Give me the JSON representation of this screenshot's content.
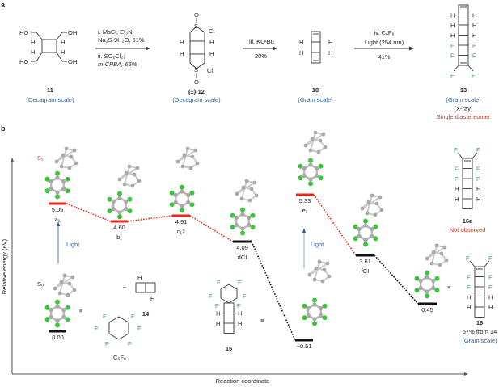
{
  "panel_a": {
    "label": "a",
    "compound_11": {
      "id": "11",
      "scale": "(Decagram scale)",
      "groups": [
        "HO",
        "OH",
        "HO",
        "OH",
        "H",
        "H",
        "H",
        "H"
      ]
    },
    "step1": {
      "line1": "i. MsCl, Et₃N;",
      "line2": "Na₂S·9H₂O, 61%",
      "line3": "ii. SO₂Cl₂;",
      "line4": "m-CPBA, 65%"
    },
    "compound_12": {
      "id": "(±)-12",
      "scale": "(Decagram scale)",
      "atoms": [
        "O",
        "S",
        "Cl",
        "S",
        "Cl",
        "O",
        "H",
        "H",
        "H",
        "H"
      ]
    },
    "step2": {
      "line1": "iii. KOᵗBu",
      "line2": "20%"
    },
    "compound_10": {
      "id": "10",
      "scale": "(Gram scale)",
      "atoms": [
        "H",
        "H",
        "H",
        "H"
      ]
    },
    "step3": {
      "line1": "iv. C₆F₆",
      "line2": "Light (254 nm)",
      "line3": "41%"
    },
    "compound_13": {
      "id": "13",
      "scale": "(Gram scale)",
      "note": "(X-ray)",
      "stereo": "Single diastereomer"
    }
  },
  "panel_b": {
    "label": "b",
    "y_axis_label": "Relative energy (eV)",
    "x_axis_label": "Reaction coordinate",
    "state_S1": "S₁",
    "state_S0": "S₀",
    "light_1": "Light",
    "light_2": "Light",
    "levels": [
      {
        "energy": "5.05",
        "name": "a₁",
        "state": "excited"
      },
      {
        "energy": "4.60",
        "name": "b₁",
        "state": "excited"
      },
      {
        "energy": "4.91",
        "name": "c₁‡",
        "state": "excited"
      },
      {
        "energy": "4.09",
        "name": "dCI",
        "state": "ground"
      },
      {
        "energy": "0.00",
        "name": "",
        "state": "ground"
      },
      {
        "energy": "−0.51",
        "name": "",
        "state": "ground"
      },
      {
        "energy": "5.33",
        "name": "e₁",
        "state": "excited"
      },
      {
        "energy": "3.61",
        "name": "fCI",
        "state": "ground"
      },
      {
        "energy": "0.45",
        "name": "",
        "state": "ground"
      }
    ],
    "plus": "+",
    "equiv": "≡",
    "compound_14": {
      "id": "14"
    },
    "c6f6": {
      "label": "C₆F₆"
    },
    "compound_15": {
      "id": "15"
    },
    "compound_16a": {
      "id": "16a",
      "note": "Not observed"
    },
    "compound_16": {
      "id": "16",
      "yield": "57% from 14",
      "scale": "(Gram scale)"
    },
    "atom_F": "F",
    "atom_H": "H"
  },
  "colors": {
    "excited": "#e8261e",
    "ground": "#111111",
    "scale_text": "#2d5fa0",
    "warning_text": "#c0392b",
    "fluorine": "#3aa04a"
  }
}
